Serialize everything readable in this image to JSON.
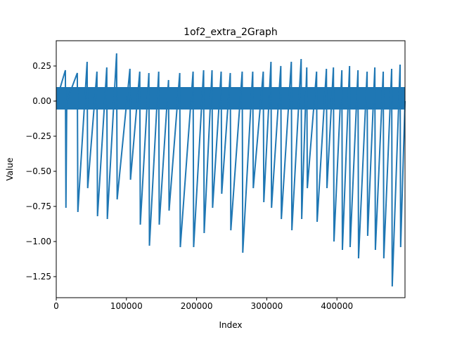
{
  "chart_data": {
    "type": "line",
    "title": "1of2_extra_2Graph",
    "xlabel": "Index",
    "ylabel": "Value",
    "xlim": [
      0,
      497000
    ],
    "ylim": [
      -1.4,
      0.43
    ],
    "x_ticks": [
      0,
      100000,
      200000,
      300000,
      400000
    ],
    "x_tick_labels": [
      "0",
      "100000",
      "200000",
      "300000",
      "400000"
    ],
    "y_ticks": [
      0.25,
      0.0,
      -0.25,
      -0.5,
      -0.75,
      -1.0,
      -1.25
    ],
    "y_tick_labels": [
      "0.25",
      "0.00",
      "−0.25",
      "−0.50",
      "−0.75",
      "−1.00",
      "−1.25"
    ],
    "grid": false,
    "line_color": "#1f77b4",
    "baseline_band": {
      "upper": 0.1,
      "lower": -0.06
    },
    "series": [
      {
        "x": [
          0,
          13000,
          13800,
          15000,
          30000,
          30800,
          44000,
          44800,
          58000,
          58800,
          72000,
          72800,
          86000,
          86800,
          105000,
          105800,
          119000,
          119800,
          132000,
          132800,
          146000,
          146800,
          160000,
          160800,
          176000,
          176800,
          195000,
          195800,
          210000,
          210800,
          222000,
          222800,
          235000,
          235800,
          248000,
          248800,
          265000,
          265800,
          280000,
          280800,
          295000,
          295800,
          306000,
          306800,
          320000,
          320800,
          335000,
          335800,
          349000,
          349800,
          357000,
          357800,
          371000,
          371800,
          385000,
          385800,
          395000,
          395800,
          407000,
          407800,
          418000,
          418800,
          430000,
          430800,
          443000,
          443800,
          454000,
          454800,
          466000,
          466800,
          478000,
          478800,
          490000,
          490800,
          497000
        ],
        "y": [
          0.0,
          0.22,
          -0.76,
          0.0,
          0.2,
          -0.79,
          0.28,
          -0.62,
          0.21,
          -0.82,
          0.24,
          -0.84,
          0.34,
          -0.7,
          0.23,
          -0.56,
          0.21,
          -0.88,
          0.2,
          -1.03,
          0.21,
          -0.88,
          0.15,
          -0.78,
          0.2,
          -1.04,
          0.21,
          -1.04,
          0.22,
          -0.94,
          0.22,
          -0.76,
          0.21,
          -0.66,
          0.2,
          -0.92,
          0.21,
          -1.08,
          0.21,
          -0.62,
          0.21,
          -0.72,
          0.28,
          -0.76,
          0.25,
          -0.84,
          0.28,
          -0.92,
          0.3,
          -0.84,
          0.24,
          -0.62,
          0.21,
          -0.86,
          0.23,
          -0.62,
          0.24,
          -1.0,
          0.22,
          -1.06,
          0.25,
          -1.04,
          0.22,
          -1.12,
          0.21,
          -0.96,
          0.24,
          -1.06,
          0.21,
          -1.12,
          0.23,
          -1.32,
          0.26,
          -1.04,
          0.0
        ]
      }
    ]
  }
}
